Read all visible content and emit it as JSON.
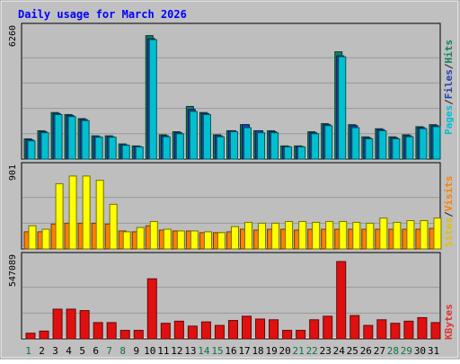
{
  "chart_data": {
    "type": "bar",
    "title": "Daily usage for March 2026",
    "categories": [
      "1",
      "2",
      "3",
      "4",
      "5",
      "6",
      "7",
      "8",
      "9",
      "10",
      "11",
      "12",
      "13",
      "14",
      "15",
      "16",
      "17",
      "18",
      "19",
      "20",
      "21",
      "22",
      "23",
      "24",
      "25",
      "26",
      "27",
      "28",
      "29",
      "30",
      "31"
    ],
    "weekend_days": [
      "1",
      "7",
      "8",
      "14",
      "15",
      "21",
      "22",
      "28",
      "29"
    ],
    "panels": [
      {
        "id": "top",
        "ymax_label": "6260",
        "ylim": [
          0,
          6260
        ],
        "legend": [
          {
            "text": "Pages",
            "color": "#00c0d0"
          },
          {
            "text": "/",
            "color": "#202020"
          },
          {
            "text": "Files",
            "color": "#2040b0"
          },
          {
            "text": "/",
            "color": "#202020"
          },
          {
            "text": "Hits",
            "color": "#108060"
          }
        ],
        "series": [
          {
            "name": "Hits",
            "color": "#108060",
            "values": [
              1000,
              1400,
              2300,
              2200,
              2000,
              1150,
              1150,
              750,
              650,
              6100,
              1200,
              1350,
              2600,
              2300,
              1200,
              1400,
              1700,
              1400,
              1400,
              650,
              650,
              1350,
              1750,
              5300,
              1700,
              1100,
              1500,
              1100,
              1200,
              1600,
              1700
            ]
          },
          {
            "name": "Files",
            "color": "#2040b0",
            "values": [
              950,
              1350,
              2250,
              2150,
              1950,
              1100,
              1100,
              700,
              620,
              5950,
              1150,
              1300,
              2450,
              2250,
              1150,
              1400,
              1700,
              1400,
              1350,
              620,
              620,
              1300,
              1700,
              5100,
              1650,
              1050,
              1450,
              1050,
              1150,
              1550,
              1650
            ]
          },
          {
            "name": "Pages",
            "color": "#00c0d0",
            "values": [
              900,
              1300,
              2200,
              2100,
              1900,
              1080,
              1080,
              680,
              600,
              5900,
              1100,
              1250,
              2350,
              2200,
              1100,
              1350,
              1550,
              1300,
              1300,
              600,
              600,
              1250,
              1650,
              5050,
              1550,
              1000,
              1400,
              1000,
              1100,
              1500,
              1600
            ]
          }
        ]
      },
      {
        "id": "middle",
        "ymax_label": "901",
        "ylim": [
          0,
          901
        ],
        "legend": [
          {
            "text": "Sites",
            "color": "#e0c000"
          },
          {
            "text": "/",
            "color": "#202020"
          },
          {
            "text": "Visits",
            "color": "#ff8000"
          }
        ],
        "series": [
          {
            "name": "Visits",
            "color": "#ff8000",
            "values": [
              200,
              200,
              290,
              300,
              300,
              300,
              290,
              210,
              200,
              270,
              220,
              210,
              210,
              190,
              190,
              200,
              230,
              220,
              230,
              230,
              220,
              230,
              230,
              230,
              230,
              230,
              230,
              230,
              230,
              230,
              240
            ]
          },
          {
            "name": "Sites",
            "color": "#ffff00",
            "values": [
              270,
              230,
              760,
              850,
              850,
              800,
              520,
              200,
              250,
              320,
              230,
              210,
              210,
              200,
              190,
              260,
              310,
              300,
              300,
              320,
              320,
              310,
              320,
              320,
              310,
              300,
              360,
              310,
              330,
              330,
              360
            ]
          }
        ]
      },
      {
        "id": "bottom",
        "ymax_label": "547089",
        "ylim": [
          0,
          547089
        ],
        "legend": [
          {
            "text": "KBytes",
            "color": "#e03030"
          }
        ],
        "series": [
          {
            "name": "KBytes",
            "color": "#e01010",
            "values": [
              40000,
              55000,
              210000,
              210000,
              200000,
              115000,
              115000,
              60000,
              60000,
              425000,
              110000,
              125000,
              90000,
              120000,
              95000,
              130000,
              160000,
              140000,
              135000,
              60000,
              60000,
              135000,
              160000,
              547089,
              165000,
              95000,
              135000,
              110000,
              125000,
              150000,
              115000
            ]
          }
        ]
      }
    ]
  }
}
